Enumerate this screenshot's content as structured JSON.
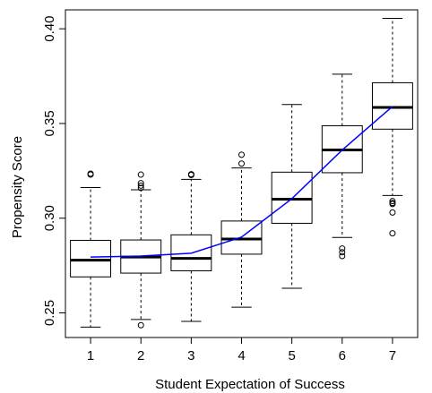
{
  "chart_data": {
    "type": "boxplot",
    "xlabel": "Student Expectation of Success",
    "ylabel": "Propensity Score",
    "ylim": [
      0.237,
      0.41
    ],
    "y_ticks": [
      0.25,
      0.3,
      0.35,
      0.4
    ],
    "y_tick_labels": [
      "0.25",
      "0.30",
      "0.35",
      "0.40"
    ],
    "categories": [
      "1",
      "2",
      "3",
      "4",
      "5",
      "6",
      "7"
    ],
    "boxes": [
      {
        "category": "1",
        "whisker_low": 0.2425,
        "q1": 0.269,
        "median": 0.2778,
        "q3": 0.2883,
        "whisker_high": 0.3162,
        "outliers": [
          0.323,
          0.3235
        ]
      },
      {
        "category": "2",
        "whisker_low": 0.2465,
        "q1": 0.271,
        "median": 0.2795,
        "q3": 0.2885,
        "whisker_high": 0.315,
        "outliers": [
          0.2435,
          0.316,
          0.3172,
          0.3185,
          0.323
        ]
      },
      {
        "category": "3",
        "whisker_low": 0.2455,
        "q1": 0.2722,
        "median": 0.2788,
        "q3": 0.2912,
        "whisker_high": 0.3205,
        "outliers": [
          0.3228,
          0.3232
        ]
      },
      {
        "category": "4",
        "whisker_low": 0.253,
        "q1": 0.281,
        "median": 0.289,
        "q3": 0.2985,
        "whisker_high": 0.3265,
        "outliers": [
          0.3288,
          0.3335
        ]
      },
      {
        "category": "5",
        "whisker_low": 0.263,
        "q1": 0.2973,
        "median": 0.31,
        "q3": 0.3243,
        "whisker_high": 0.36,
        "outliers": []
      },
      {
        "category": "6",
        "whisker_low": 0.2898,
        "q1": 0.324,
        "median": 0.336,
        "q3": 0.3488,
        "whisker_high": 0.376,
        "outliers": [
          0.28,
          0.282,
          0.284
        ]
      },
      {
        "category": "7",
        "whisker_low": 0.312,
        "q1": 0.347,
        "median": 0.3585,
        "q3": 0.3715,
        "whisker_high": 0.4055,
        "outliers": [
          0.292,
          0.303,
          0.3075,
          0.308,
          0.309
        ]
      }
    ],
    "series": [
      {
        "type": "line",
        "color": "#0000ff",
        "values": [
          0.2795,
          0.28,
          0.2815,
          0.29,
          0.3103,
          0.336,
          0.359
        ]
      }
    ],
    "grid": false,
    "legend": "none"
  }
}
